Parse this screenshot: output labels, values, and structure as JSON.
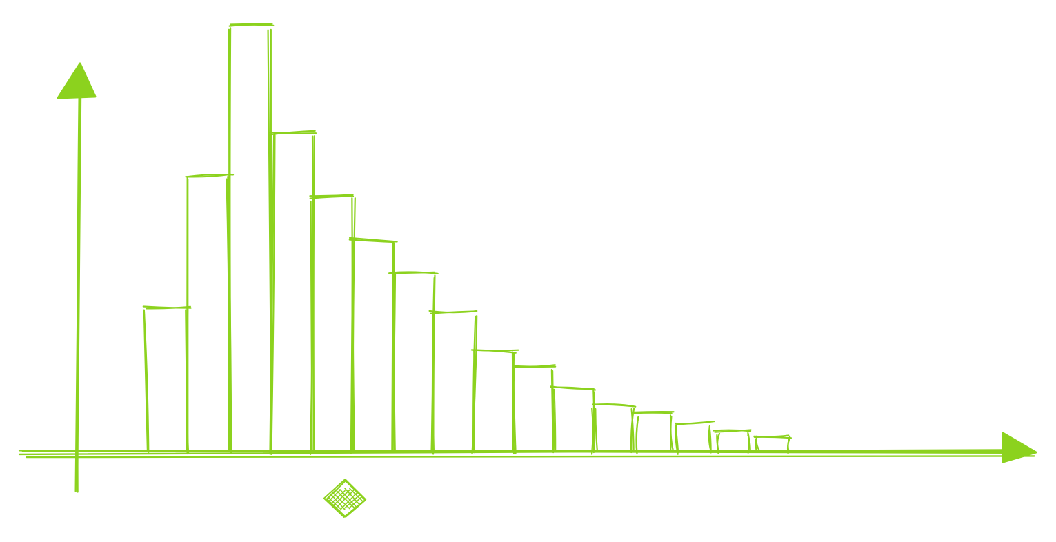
{
  "chart_data": {
    "type": "bar",
    "style": "hand-drawn sketch, outlined bars, no fill",
    "title": "",
    "xlabel": "",
    "ylabel": "",
    "grid": false,
    "legend": "none",
    "ylim": [
      0,
      100
    ],
    "values": [
      34,
      65,
      100,
      75,
      60,
      50,
      42,
      33,
      24,
      20,
      15,
      11,
      9,
      7,
      5,
      4
    ],
    "marker": {
      "shape": "diamond",
      "style": "cross-hatched",
      "bar_index": 4
    }
  },
  "colors": {
    "stroke": "#8cd21e",
    "fill_marker": "#8cd21e",
    "background": "#ffffff"
  }
}
